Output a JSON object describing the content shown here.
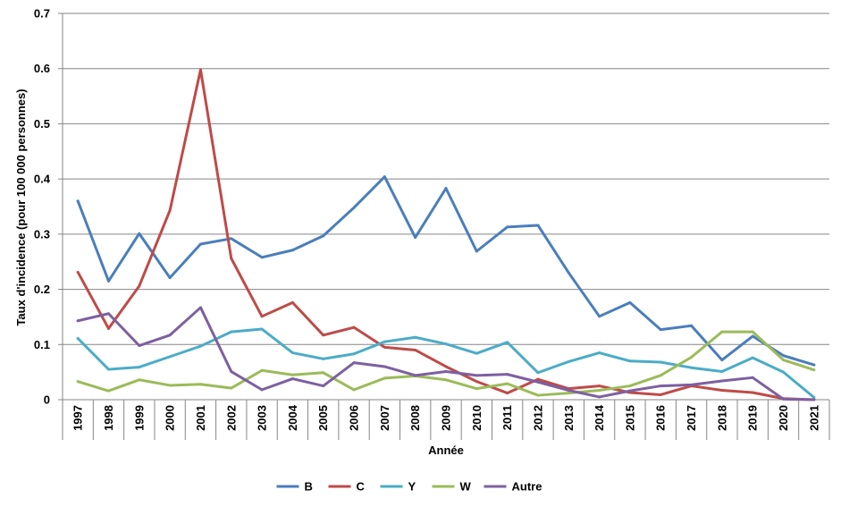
{
  "chart_data": {
    "type": "line",
    "title": "",
    "xlabel": "Année",
    "ylabel": "Taux d'incidence (pour 100 000 personnes)",
    "ylim": [
      0,
      0.7
    ],
    "yticks": [
      "0",
      "0.1",
      "0.2",
      "0.3",
      "0.4",
      "0.5",
      "0.6",
      "0.7"
    ],
    "grid": true,
    "legend_position": "bottom",
    "categories": [
      "1997",
      "1998",
      "1999",
      "2000",
      "2001",
      "2002",
      "2003",
      "2004",
      "2005",
      "2006",
      "2007",
      "2008",
      "2009",
      "2010",
      "2011",
      "2012",
      "2013",
      "2014",
      "2015",
      "2016",
      "2017",
      "2018",
      "2019",
      "2020",
      "2021"
    ],
    "series": [
      {
        "name": "B",
        "color": "#4a7ebb",
        "values": [
          0.36,
          0.215,
          0.301,
          0.221,
          0.282,
          0.292,
          0.258,
          0.271,
          0.297,
          0.348,
          0.404,
          0.294,
          0.383,
          0.269,
          0.313,
          0.316,
          0.23,
          0.151,
          0.176,
          0.127,
          0.134,
          0.072,
          0.115,
          0.08,
          0.063
        ]
      },
      {
        "name": "C",
        "color": "#be4b48",
        "values": [
          0.231,
          0.129,
          0.206,
          0.343,
          0.598,
          0.256,
          0.151,
          0.176,
          0.117,
          0.131,
          0.095,
          0.09,
          0.06,
          0.033,
          0.012,
          0.037,
          0.02,
          0.025,
          0.013,
          0.009,
          0.025,
          0.017,
          0.013,
          0.002,
          0.0
        ]
      },
      {
        "name": "Y",
        "color": "#4bacc6",
        "values": [
          0.111,
          0.055,
          0.059,
          0.078,
          0.097,
          0.123,
          0.128,
          0.085,
          0.074,
          0.083,
          0.105,
          0.113,
          0.101,
          0.084,
          0.104,
          0.049,
          0.069,
          0.085,
          0.07,
          0.068,
          0.058,
          0.051,
          0.076,
          0.05,
          0.004
        ]
      },
      {
        "name": "W",
        "color": "#9bbb59",
        "values": [
          0.033,
          0.016,
          0.036,
          0.026,
          0.028,
          0.021,
          0.053,
          0.045,
          0.049,
          0.018,
          0.039,
          0.043,
          0.036,
          0.02,
          0.029,
          0.008,
          0.012,
          0.017,
          0.025,
          0.044,
          0.077,
          0.123,
          0.123,
          0.072,
          0.054
        ]
      },
      {
        "name": "Autre",
        "color": "#7d60a0",
        "values": [
          0.143,
          0.156,
          0.098,
          0.117,
          0.167,
          0.051,
          0.018,
          0.038,
          0.025,
          0.067,
          0.06,
          0.044,
          0.051,
          0.044,
          0.046,
          0.032,
          0.017,
          0.005,
          0.016,
          0.025,
          0.027,
          0.034,
          0.04,
          0.001,
          0.0
        ]
      }
    ]
  }
}
